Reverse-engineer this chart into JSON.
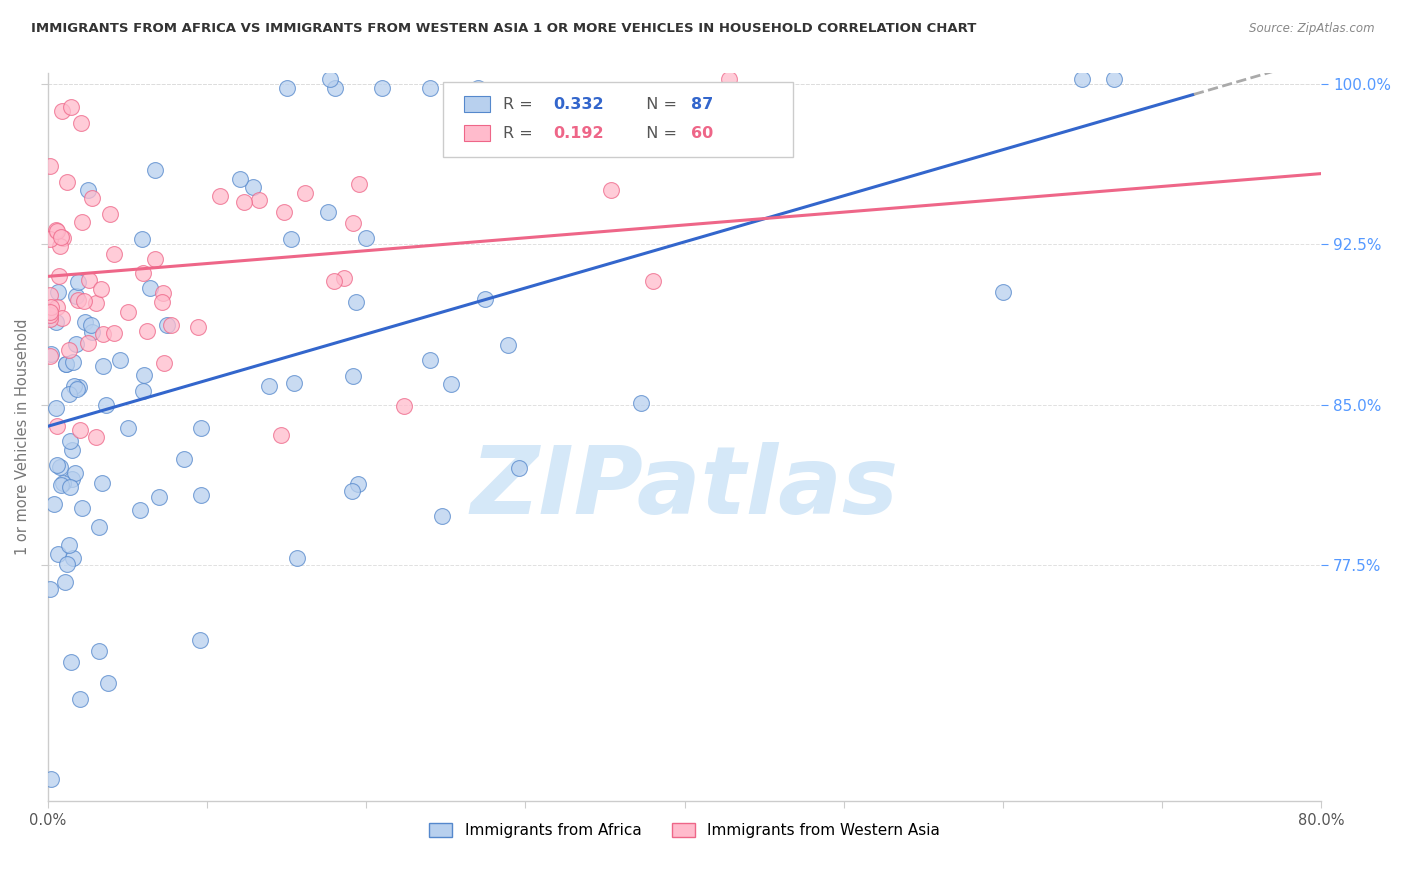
{
  "title": "IMMIGRANTS FROM AFRICA VS IMMIGRANTS FROM WESTERN ASIA 1 OR MORE VEHICLES IN HOUSEHOLD CORRELATION CHART",
  "source": "Source: ZipAtlas.com",
  "ylabel": "1 or more Vehicles in Household",
  "legend_label_blue": "Immigrants from Africa",
  "legend_label_pink": "Immigrants from Western Asia",
  "R_blue": 0.332,
  "N_blue": 87,
  "R_pink": 0.192,
  "N_pink": 60,
  "color_blue_fill": "#B8D0EE",
  "color_blue_edge": "#5588CC",
  "color_pink_fill": "#FFBBCC",
  "color_pink_edge": "#EE6688",
  "color_blue_line": "#3366CC",
  "color_pink_line": "#EE6688",
  "color_right_axis": "#5599FF",
  "watermark_color": "#D5E8F8",
  "xlim": [
    0.0,
    0.8
  ],
  "ylim": [
    0.665,
    1.005
  ],
  "y_ticks": [
    0.775,
    0.85,
    0.925,
    1.0
  ],
  "y_tick_labels": [
    "77.5%",
    "85.0%",
    "92.5%",
    "100.0%"
  ],
  "x_ticks": [
    0.0,
    0.1,
    0.2,
    0.3,
    0.4,
    0.5,
    0.6,
    0.7,
    0.8
  ],
  "blue_trend_x0": 0.0,
  "blue_trend_y0": 0.84,
  "blue_trend_x1": 0.72,
  "blue_trend_y1": 0.995,
  "pink_trend_x0": 0.0,
  "pink_trend_y0": 0.91,
  "pink_trend_x1": 0.8,
  "pink_trend_y1": 0.958
}
